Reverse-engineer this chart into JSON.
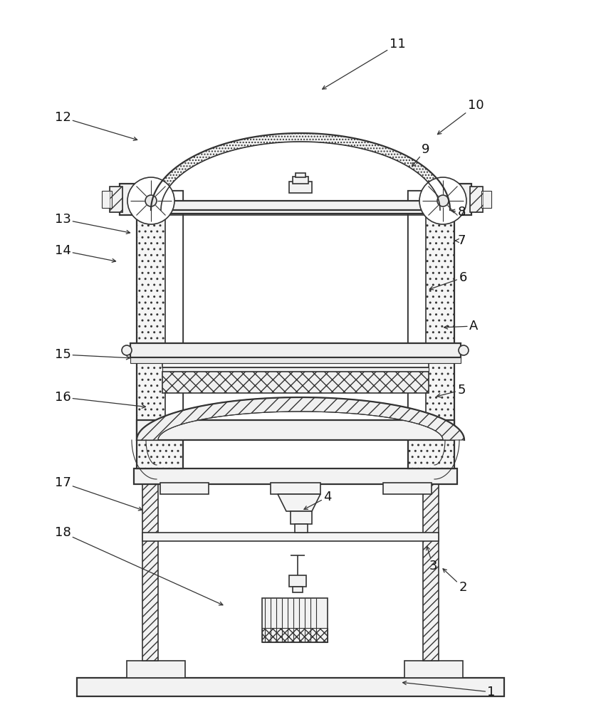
{
  "bg_color": "#ffffff",
  "line_color": "#333333",
  "figsize": [
    8.44,
    10.0
  ],
  "dpi": 100,
  "label_arrows": [
    [
      1,
      690,
      972,
      560,
      958
    ],
    [
      2,
      650,
      825,
      618,
      795
    ],
    [
      3,
      608,
      795,
      598,
      762
    ],
    [
      4,
      460,
      698,
      422,
      718
    ],
    [
      5,
      648,
      548,
      608,
      558
    ],
    [
      6,
      650,
      390,
      598,
      408
    ],
    [
      7,
      648,
      338,
      638,
      338
    ],
    [
      8,
      648,
      298,
      628,
      295
    ],
    [
      9,
      598,
      210,
      575,
      238
    ],
    [
      10,
      668,
      148,
      610,
      192
    ],
    [
      11,
      558,
      62,
      448,
      128
    ],
    [
      12,
      88,
      165,
      198,
      198
    ],
    [
      13,
      88,
      308,
      188,
      328
    ],
    [
      14,
      88,
      352,
      168,
      368
    ],
    [
      15,
      88,
      498,
      188,
      503
    ],
    [
      16,
      88,
      558,
      210,
      572
    ],
    [
      17,
      88,
      678,
      205,
      718
    ],
    [
      18,
      88,
      748,
      318,
      852
    ],
    [
      "A",
      665,
      458,
      618,
      460
    ]
  ]
}
